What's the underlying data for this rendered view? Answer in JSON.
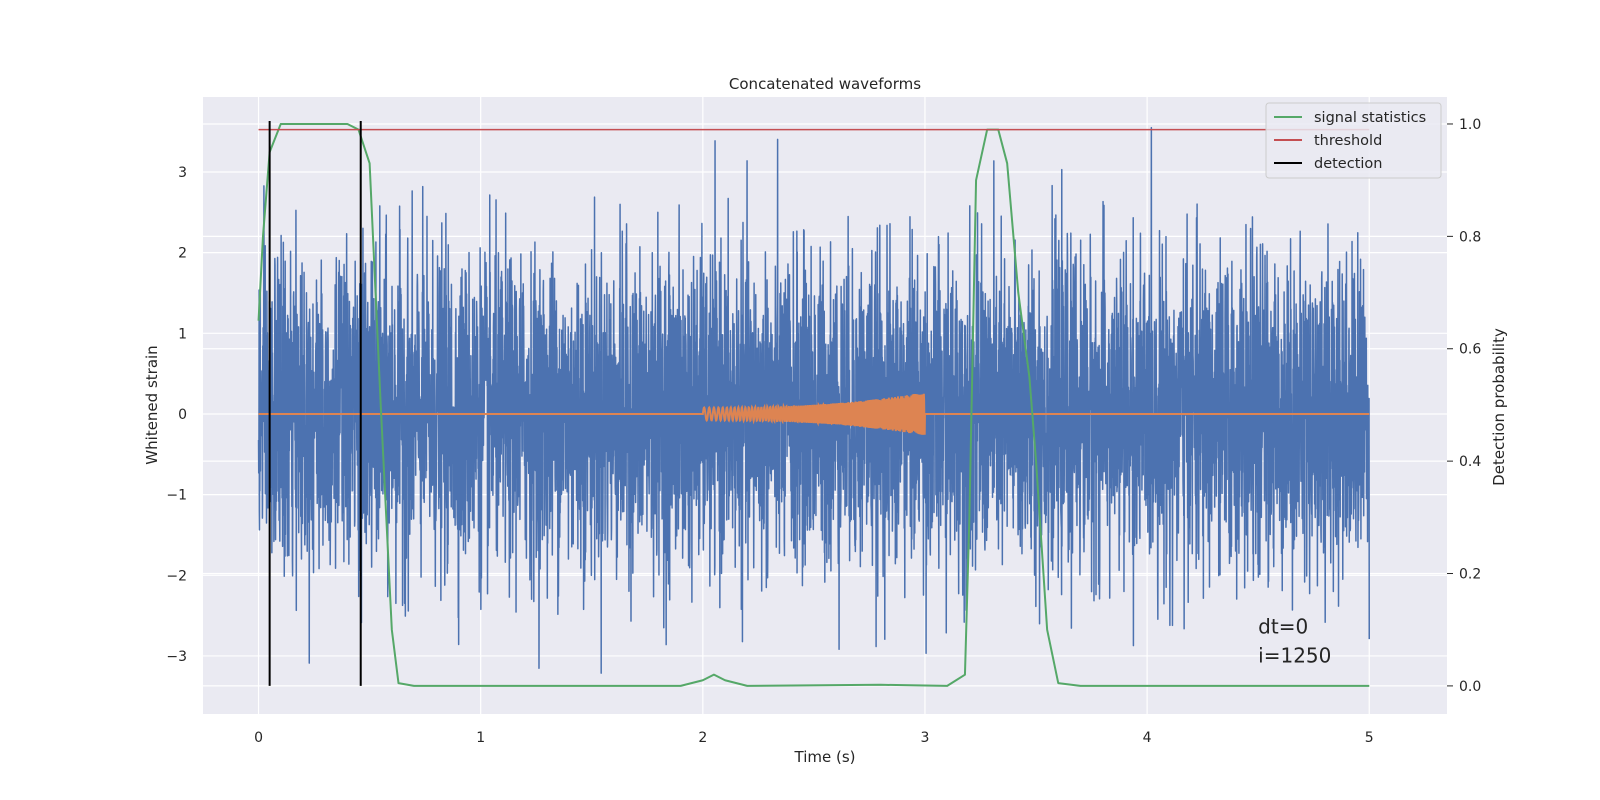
{
  "chart_data": {
    "type": "line",
    "title": "Concatenated waveforms",
    "xlabel": "Time (s)",
    "ylabel": "Whitened strain",
    "y2label": "Detection probability",
    "xlim": [
      -0.25,
      5.35
    ],
    "ylim": [
      -3.72,
      3.93
    ],
    "y2lim": [
      -0.05,
      1.048
    ],
    "x_ticks": [
      0,
      1,
      2,
      3,
      4,
      5
    ],
    "y_ticks": [
      -3,
      -2,
      -1,
      0,
      1,
      2,
      3
    ],
    "y2_ticks": [
      0.0,
      0.2,
      0.4,
      0.6,
      0.8,
      1.0
    ],
    "grid": true,
    "legend_position": "top-right",
    "series": [
      {
        "name": "",
        "axis": "left",
        "color": "#4c72b0",
        "kind": "noise",
        "x_range": [
          0,
          5
        ],
        "amplitude_peak": 3.55,
        "amplitude_min": -3.4
      },
      {
        "name": "",
        "axis": "left",
        "color": "#dd8452",
        "kind": "chirp",
        "x_range": [
          2,
          3
        ],
        "start_amplitude": 0.08,
        "end_amplitude": 0.27
      },
      {
        "name": "signal statistics",
        "axis": "right",
        "color": "#55a868",
        "x": [
          0,
          0.02,
          0.05,
          0.1,
          0.4,
          0.45,
          0.5,
          0.55,
          0.6,
          0.63,
          0.7,
          1.0,
          1.5,
          1.9,
          2.0,
          2.05,
          2.1,
          2.2,
          2.8,
          3.1,
          3.18,
          3.2,
          3.23,
          3.28,
          3.33,
          3.37,
          3.42,
          3.47,
          3.5,
          3.55,
          3.6,
          3.7,
          5.0
        ],
        "y": [
          0.65,
          0.8,
          0.95,
          1.0,
          1.0,
          0.99,
          0.93,
          0.5,
          0.1,
          0.005,
          0.0,
          0.0,
          0.0,
          0.0,
          0.01,
          0.02,
          0.01,
          0.0,
          0.002,
          0.0,
          0.02,
          0.3,
          0.9,
          0.99,
          0.99,
          0.93,
          0.7,
          0.55,
          0.4,
          0.1,
          0.005,
          0.0,
          0.0
        ]
      },
      {
        "name": "threshold",
        "axis": "right",
        "color": "#c44e52",
        "x": [
          0,
          5
        ],
        "y": [
          0.99,
          0.99
        ]
      },
      {
        "name": "detection",
        "axis": "right",
        "color": "#000000",
        "x": [
          0.05,
          0.46
        ],
        "y_range": [
          0.0,
          1.0
        ]
      }
    ],
    "annotations": [
      {
        "text": "dt=0",
        "x": 4.5,
        "y": -2.72
      },
      {
        "text": "i=1250",
        "x": 4.5,
        "y": -3.08
      }
    ]
  }
}
